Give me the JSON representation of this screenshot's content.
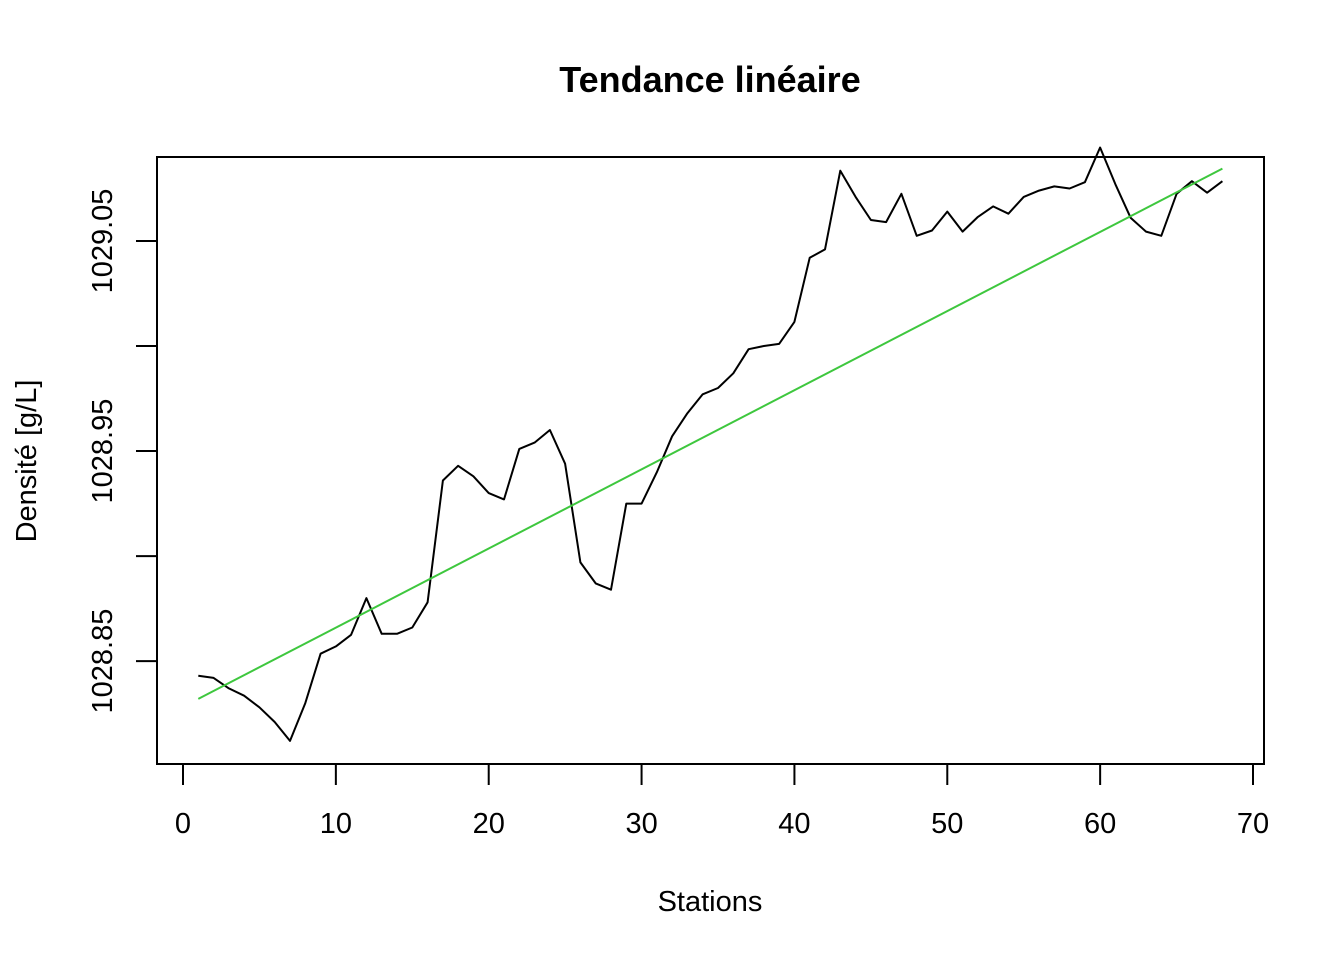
{
  "chart_data": {
    "type": "line",
    "title": "Tendance linéaire",
    "xlabel": "Stations",
    "ylabel": "Densité [g/L]",
    "xlim": [
      0,
      70
    ],
    "ylim": [
      1028.801,
      1029.09
    ],
    "x_ticks": [
      0,
      10,
      20,
      30,
      40,
      50,
      60,
      70
    ],
    "x_tick_labels": [
      "0",
      "10",
      "20",
      "30",
      "40",
      "50",
      "60",
      "70"
    ],
    "y_ticks": [
      1028.85,
      1028.9,
      1028.95,
      1029.0,
      1029.05
    ],
    "y_tick_labels": [
      "1028.85",
      "",
      "1028.95",
      "",
      "1029.05"
    ],
    "grid": false,
    "series": [
      {
        "color": "#000000",
        "x": [
          1,
          2,
          3,
          4,
          5,
          6,
          7,
          8,
          9,
          10,
          11,
          12,
          13,
          14,
          15,
          16,
          17,
          18,
          19,
          20,
          21,
          22,
          23,
          24,
          25,
          26,
          27,
          28,
          29,
          30,
          31,
          32,
          33,
          34,
          35,
          36,
          37,
          38,
          39,
          40,
          41,
          42,
          43,
          44,
          45,
          46,
          47,
          48,
          49,
          50,
          51,
          52,
          53,
          54,
          55,
          56,
          57,
          58,
          59,
          60,
          61,
          62,
          63,
          64,
          65,
          66,
          67,
          68
        ],
        "y": [
          1028.843,
          1028.842,
          1028.837,
          1028.8335,
          1028.828,
          1028.821,
          1028.812,
          1028.83,
          1028.8535,
          1028.857,
          1028.8625,
          1028.88,
          1028.863,
          1028.863,
          1028.866,
          1028.878,
          1028.936,
          1028.943,
          1028.938,
          1028.93,
          1028.927,
          1028.951,
          1028.954,
          1028.96,
          1028.944,
          1028.897,
          1028.887,
          1028.884,
          1028.925,
          1028.925,
          1028.94,
          1028.957,
          1028.968,
          1028.977,
          1028.98,
          1028.987,
          1028.9985,
          1029.0,
          1029.001,
          1029.0115,
          1029.042,
          1029.046,
          1029.0835,
          1029.071,
          1029.06,
          1029.059,
          1029.0725,
          1029.0525,
          1029.055,
          1029.064,
          1029.0545,
          1029.0615,
          1029.0665,
          1029.063,
          1029.071,
          1029.074,
          1029.076,
          1029.075,
          1029.078,
          1029.0945,
          1029.077,
          1029.061,
          1029.0545,
          1029.0525,
          1029.0725,
          1029.0785,
          1029.073,
          1029.0785
        ]
      },
      {
        "color": "#3ec73e",
        "x": [
          1,
          68
        ],
        "y": [
          1028.832,
          1029.0845
        ]
      }
    ]
  }
}
